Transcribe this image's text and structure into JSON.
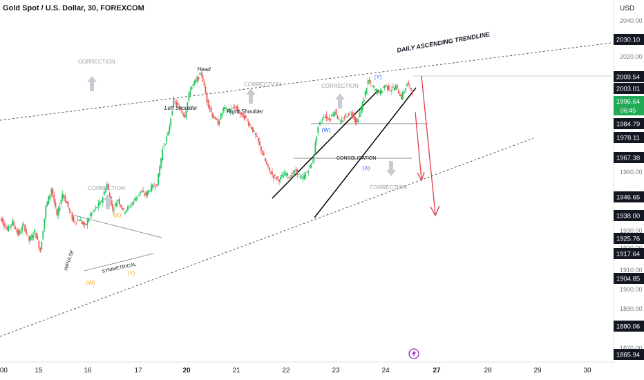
{
  "header": {
    "title": "Gold Spot / U.S. Dollar, 30, FOREXCOM",
    "currency": "USD"
  },
  "colors": {
    "up": "#26a69a",
    "up_bright": "#22c55e",
    "down": "#ef5350",
    "arrow": "#e03a48",
    "label_bg": "#131722",
    "current_bg": "#22ab57",
    "wave_orange": "#f5a623",
    "wave_blue": "#2962ff",
    "annotation_gray": "#9aa0a6"
  },
  "chart_data": {
    "type": "line",
    "title": "Gold Spot / U.S. Dollar, 30, FOREXCOM",
    "x_tick_labels": [
      ":00",
      "15",
      "16",
      "17",
      "20",
      "21",
      "22",
      "23",
      "24",
      "27",
      "28",
      "29",
      "30"
    ],
    "y_tick_labels": [
      "2040.00",
      "2020.00",
      "1990.00",
      "1970.00",
      "1960.00",
      "1950.00",
      "1930.00",
      "1920.00",
      "1910.00",
      "1900.00",
      "1890.00",
      "1870.00"
    ],
    "ylim": [
      1864,
      2044
    ],
    "price_labels": [
      "2030.10",
      "2009.54",
      "2003.01",
      "1984.79",
      "1978.11",
      "1967.38",
      "1946.65",
      "1938.00",
      "1925.76",
      "1917.64",
      "1904.85",
      "1880.06",
      "1865.94"
    ],
    "current_price": {
      "value": "1996.64",
      "countdown": "06:45"
    },
    "series": [
      {
        "values": [
          1912,
          1905,
          1910,
          1902,
          1908,
          1898,
          1904,
          1891,
          1920,
          1932,
          1914,
          1929,
          1920,
          1910,
          1912,
          1907,
          1915,
          1919,
          1924,
          1935,
          1918,
          1925,
          1917,
          1920,
          1925,
          1930,
          1928,
          1933,
          1935,
          1958,
          1968,
          1990,
          1985,
          1980,
          1998,
          2003,
          2008,
          1990,
          1980,
          1975,
          1985,
          1983,
          1986,
          1981,
          1978,
          1972,
          1965,
          1955,
          1945,
          1940,
          1938,
          1942,
          1940,
          1944,
          1938,
          1943,
          1950,
          1973,
          1980,
          1978,
          1983,
          1975,
          1980,
          1982,
          1975,
          1988,
          2003,
          1998,
          1995,
          2000,
          1997,
          1999,
          1992,
          2001,
          1996
        ]
      }
    ],
    "annotations": {
      "trendline_label": "DAILY ASCENDING TRENDLINE",
      "head": "Head",
      "left_shoulder": "Left Shoulder",
      "right_shoulder": "Right Shoulder",
      "correction": "CORRECTION",
      "consolidation": "CONSOLIDATION",
      "impulse": "IMPULSE",
      "symmetrical": "SYMMETRICAL",
      "wave_x": "(X)",
      "wave_w": "(W)",
      "wave_y": "(Y)"
    }
  }
}
